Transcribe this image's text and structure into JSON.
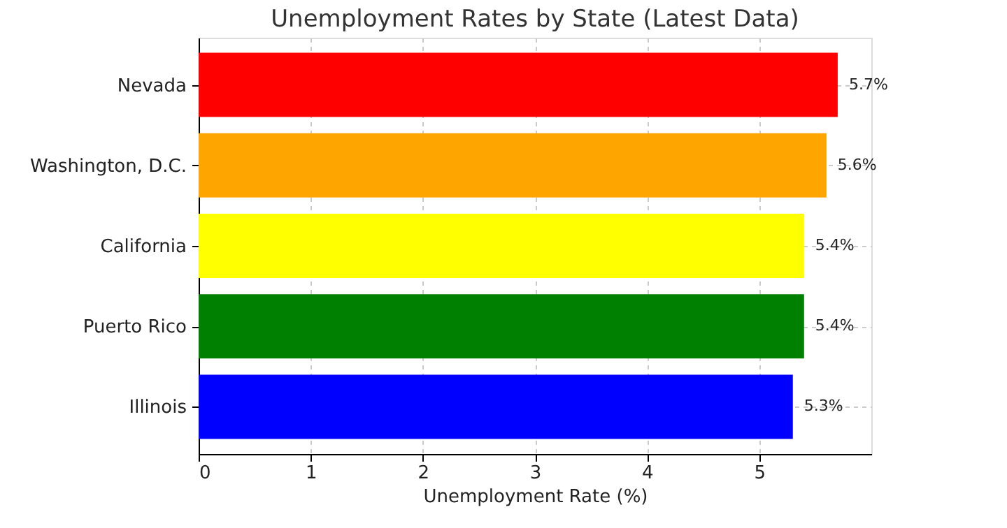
{
  "chart_data": {
    "type": "bar",
    "orientation": "horizontal",
    "title": "Unemployment Rates by State (Latest Data)",
    "xlabel": "Unemployment Rate (%)",
    "categories": [
      "Nevada",
      "Washington, D.C.",
      "California",
      "Puerto Rico",
      "Illinois"
    ],
    "values": [
      5.7,
      5.6,
      5.4,
      5.4,
      5.3
    ],
    "colors": [
      "#ff0000",
      "#ffa500",
      "#ffff00",
      "#008000",
      "#0000ff"
    ],
    "value_labels": [
      "5.7%",
      "5.6%",
      "5.4%",
      "5.4%",
      "5.3%"
    ],
    "xlim": [
      0,
      6
    ],
    "xticks": [
      0,
      1,
      2,
      3,
      4,
      5
    ],
    "grid": true
  }
}
